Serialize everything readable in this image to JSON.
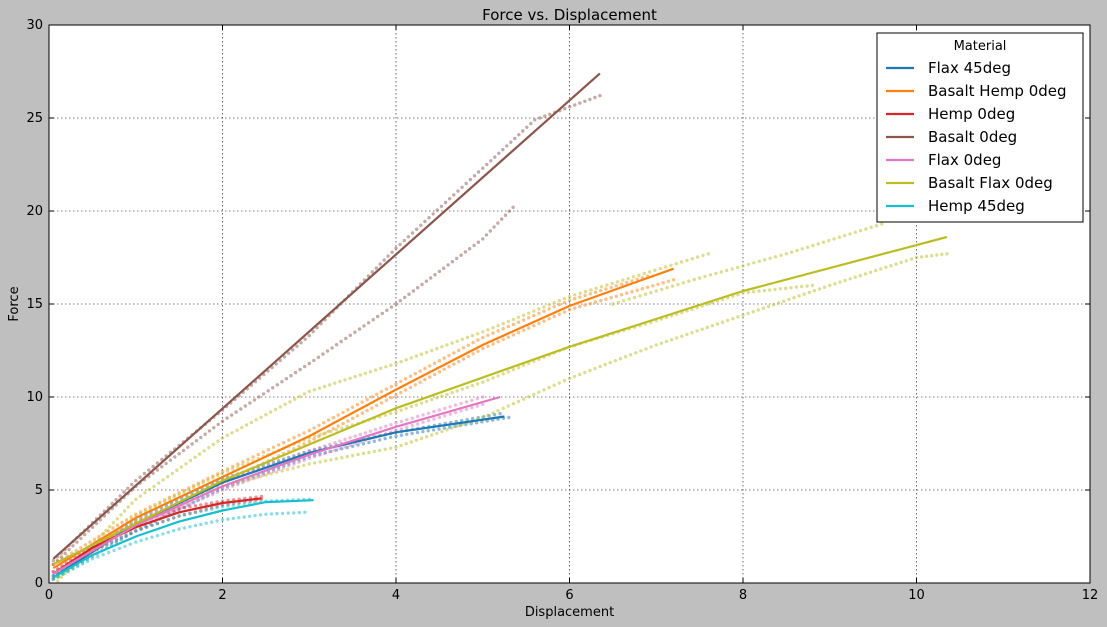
{
  "chart_data": {
    "type": "line",
    "title": "Force vs. Displacement",
    "xlabel": "Displacement",
    "ylabel": "Force",
    "xlim": [
      0,
      12
    ],
    "ylim": [
      0,
      30
    ],
    "x_ticks": [
      "0",
      "2",
      "4",
      "6",
      "8",
      "10",
      "12"
    ],
    "y_ticks": [
      "0",
      "5",
      "10",
      "15",
      "20",
      "25",
      "30"
    ],
    "grid": true,
    "legend": {
      "title": "Material",
      "placement": "top-right"
    },
    "series": [
      {
        "name": "Flax 45deg",
        "color": "#1f77b4",
        "fit": [
          [
            0.05,
            0.3
          ],
          [
            1,
            3.2
          ],
          [
            2,
            5.4
          ],
          [
            3,
            7.0
          ],
          [
            4,
            8.1
          ],
          [
            5.25,
            8.95
          ]
        ],
        "raw": [
          [
            [
              0.05,
              0.2
            ],
            [
              1,
              2.8
            ],
            [
              2,
              5.1
            ],
            [
              3,
              6.8
            ],
            [
              4,
              7.9
            ],
            [
              5.3,
              8.9
            ]
          ],
          [
            [
              0.05,
              0.4
            ],
            [
              1,
              3.4
            ],
            [
              2,
              5.6
            ],
            [
              3,
              7.1
            ],
            [
              4,
              8.1
            ],
            [
              5.2,
              9.1
            ]
          ]
        ]
      },
      {
        "name": "Basalt Hemp 0deg",
        "color": "#ff7f0e",
        "fit": [
          [
            0.05,
            0.8
          ],
          [
            1,
            3.5
          ],
          [
            2,
            5.7
          ],
          [
            3,
            7.9
          ],
          [
            4,
            10.4
          ],
          [
            5,
            12.8
          ],
          [
            6,
            14.9
          ],
          [
            7.2,
            16.9
          ]
        ],
        "raw": [
          [
            [
              0.05,
              0.6
            ],
            [
              1,
              3.2
            ],
            [
              2,
              5.4
            ],
            [
              3,
              7.6
            ],
            [
              4,
              10.1
            ],
            [
              5,
              12.6
            ],
            [
              6,
              14.7
            ],
            [
              7.2,
              16.3
            ]
          ],
          [
            [
              0.05,
              1.0
            ],
            [
              1,
              3.7
            ],
            [
              2,
              6.0
            ],
            [
              3,
              8.2
            ],
            [
              4,
              10.7
            ],
            [
              5,
              13.2
            ],
            [
              6,
              15.2
            ],
            [
              6.9,
              16.5
            ]
          ]
        ]
      },
      {
        "name": "Hemp 0deg",
        "color": "#d62728",
        "fit": [
          [
            0.05,
            0.5
          ],
          [
            0.5,
            1.9
          ],
          [
            1,
            3.0
          ],
          [
            1.5,
            3.8
          ],
          [
            2,
            4.3
          ],
          [
            2.45,
            4.55
          ]
        ],
        "raw": [
          [
            [
              0.05,
              0.3
            ],
            [
              0.5,
              1.7
            ],
            [
              1,
              2.8
            ],
            [
              1.5,
              3.6
            ],
            [
              2,
              4.2
            ],
            [
              2.45,
              4.5
            ]
          ],
          [
            [
              0.05,
              0.6
            ],
            [
              0.5,
              2.0
            ],
            [
              1,
              3.2
            ],
            [
              1.5,
              4.0
            ],
            [
              2,
              4.4
            ],
            [
              2.45,
              4.65
            ]
          ]
        ]
      },
      {
        "name": "Basalt 0deg",
        "color": "#8c564b",
        "fit": [
          [
            0.05,
            1.3
          ],
          [
            6.35,
            27.4
          ]
        ],
        "raw": [
          [
            [
              0.05,
              1.2
            ],
            [
              1,
              5.5
            ],
            [
              2,
              9.3
            ],
            [
              3,
              13.3
            ],
            [
              4,
              18.0
            ],
            [
              5,
              22.3
            ],
            [
              5.6,
              24.9
            ],
            [
              6.35,
              26.2
            ]
          ],
          [
            [
              0.05,
              1.0
            ],
            [
              1,
              5.2
            ],
            [
              2,
              8.7
            ],
            [
              3,
              11.8
            ],
            [
              4,
              15.0
            ],
            [
              5,
              18.5
            ],
            [
              5.35,
              20.2
            ]
          ]
        ]
      },
      {
        "name": "Flax 0deg",
        "color": "#e377c2",
        "fit": [
          [
            0.05,
            0.5
          ],
          [
            1,
            3.1
          ],
          [
            2,
            5.2
          ],
          [
            3,
            6.9
          ],
          [
            4,
            8.4
          ],
          [
            5.2,
            10.0
          ]
        ],
        "raw": [
          [
            [
              0.05,
              0.4
            ],
            [
              1,
              3.0
            ],
            [
              2,
              5.0
            ],
            [
              3,
              6.7
            ],
            [
              4,
              8.2
            ],
            [
              5.0,
              9.6
            ]
          ],
          [
            [
              0.05,
              0.6
            ],
            [
              1,
              3.3
            ],
            [
              2,
              5.4
            ],
            [
              3,
              7.1
            ],
            [
              4,
              8.6
            ],
            [
              5.0,
              10.0
            ]
          ]
        ]
      },
      {
        "name": "Basalt Flax 0deg",
        "color": "#bcbd22",
        "fit": [
          [
            0.05,
            1.0
          ],
          [
            2,
            5.5
          ],
          [
            4,
            9.4
          ],
          [
            6,
            12.7
          ],
          [
            8,
            15.7
          ],
          [
            10.35,
            18.6
          ]
        ],
        "raw": [
          [
            [
              0.1,
              0.1
            ],
            [
              1,
              4.5
            ],
            [
              2,
              7.8
            ],
            [
              3,
              10.3
            ],
            [
              4,
              11.8
            ],
            [
              5,
              13.5
            ],
            [
              6,
              15.4
            ],
            [
              7.6,
              17.7
            ]
          ],
          [
            [
              0.1,
              0.5
            ],
            [
              1,
              3.6
            ],
            [
              2,
              5.9
            ],
            [
              3,
              7.8
            ],
            [
              4,
              9.2
            ],
            [
              5,
              10.8
            ],
            [
              6,
              12.7
            ],
            [
              7,
              14.1
            ],
            [
              8,
              15.6
            ],
            [
              8.8,
              16.0
            ]
          ],
          [
            [
              0.1,
              0.3
            ],
            [
              1,
              3.3
            ],
            [
              2,
              5.2
            ],
            [
              3,
              6.4
            ],
            [
              4,
              7.3
            ],
            [
              5,
              8.9
            ],
            [
              6,
              11.0
            ],
            [
              7,
              12.8
            ],
            [
              8,
              14.4
            ],
            [
              9,
              16.0
            ],
            [
              10,
              17.5
            ],
            [
              10.35,
              17.7
            ]
          ],
          [
            [
              6.5,
              15.0
            ],
            [
              7.5,
              16.4
            ],
            [
              8.5,
              17.7
            ],
            [
              9.6,
              19.3
            ]
          ]
        ]
      },
      {
        "name": "Hemp 45deg",
        "color": "#17becf",
        "fit": [
          [
            0.05,
            0.3
          ],
          [
            0.5,
            1.5
          ],
          [
            1,
            2.5
          ],
          [
            1.5,
            3.3
          ],
          [
            2,
            3.9
          ],
          [
            2.5,
            4.35
          ],
          [
            3.05,
            4.45
          ]
        ],
        "raw": [
          [
            [
              0.05,
              0.2
            ],
            [
              0.5,
              1.3
            ],
            [
              1,
              2.2
            ],
            [
              1.5,
              2.9
            ],
            [
              2,
              3.4
            ],
            [
              2.5,
              3.7
            ],
            [
              2.95,
              3.8
            ]
          ],
          [
            [
              0.05,
              0.4
            ],
            [
              0.5,
              1.7
            ],
            [
              1,
              2.8
            ],
            [
              1.5,
              3.6
            ],
            [
              2,
              4.1
            ],
            [
              2.5,
              4.4
            ],
            [
              3.0,
              4.5
            ]
          ]
        ]
      }
    ]
  }
}
